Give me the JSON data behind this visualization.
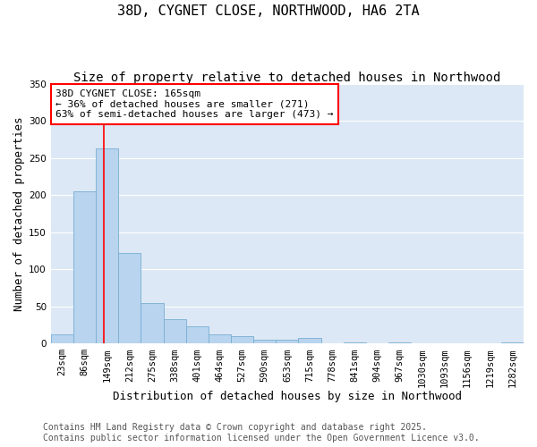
{
  "title": "38D, CYGNET CLOSE, NORTHWOOD, HA6 2TA",
  "subtitle": "Size of property relative to detached houses in Northwood",
  "xlabel": "Distribution of detached houses by size in Northwood",
  "ylabel": "Number of detached properties",
  "bar_color": "#b8d4ee",
  "bar_edge_color": "#7aaed4",
  "bg_color": "#dce8f5",
  "grid_color": "#ffffff",
  "fig_bg_color": "#ffffff",
  "categories": [
    "23sqm",
    "86sqm",
    "149sqm",
    "212sqm",
    "275sqm",
    "338sqm",
    "401sqm",
    "464sqm",
    "527sqm",
    "590sqm",
    "653sqm",
    "715sqm",
    "778sqm",
    "841sqm",
    "904sqm",
    "967sqm",
    "1030sqm",
    "1093sqm",
    "1156sqm",
    "1219sqm",
    "1282sqm"
  ],
  "values": [
    12,
    205,
    263,
    122,
    55,
    33,
    23,
    12,
    10,
    5,
    5,
    8,
    0,
    2,
    0,
    2,
    0,
    0,
    0,
    0,
    2
  ],
  "ylim": [
    0,
    350
  ],
  "yticks": [
    0,
    50,
    100,
    150,
    200,
    250,
    300,
    350
  ],
  "property_line_x": 1.85,
  "property_label": "38D CYGNET CLOSE: 165sqm",
  "annotation_line1": "← 36% of detached houses are smaller (271)",
  "annotation_line2": "63% of semi-detached houses are larger (473) →",
  "footer_line1": "Contains HM Land Registry data © Crown copyright and database right 2025.",
  "footer_line2": "Contains public sector information licensed under the Open Government Licence v3.0.",
  "title_fontsize": 11,
  "subtitle_fontsize": 10,
  "xlabel_fontsize": 9,
  "ylabel_fontsize": 9,
  "tick_fontsize": 7.5,
  "annotation_fontsize": 8,
  "footer_fontsize": 7
}
